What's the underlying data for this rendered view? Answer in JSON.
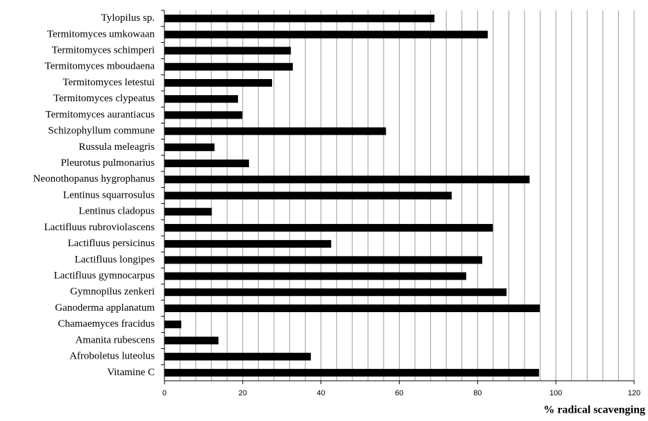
{
  "chart_data": {
    "type": "bar",
    "orientation": "horizontal",
    "x_label": "% radical scavenging",
    "categories": [
      "Tylopilus sp.",
      "Termitomyces umkowaan",
      "Termitomyces schimperi",
      "Termitomyces mboudaena",
      "Termitomyces letestui",
      "Termitomyces clypeatus",
      "Termitomyces aurantiacus",
      "Schizophyllum commune",
      "Russula meleagris",
      "Pleurotus pulmonarius",
      "Neonothopanus hygrophanus",
      "Lentinus squarrosulus",
      "Lentinus cladopus",
      "Lactifluus rubroviolascens",
      "Lactifluus persicinus",
      "Lactifluus longipes",
      "Lactifluus gymnocarpus",
      "Gymnopilus zenkeri",
      "Ganoderma applanatum",
      "Chamaemyces fracidus",
      "Amanita rubescens",
      "Afroboletus luteolus",
      "Vitamine C"
    ],
    "values": [
      69,
      82.6,
      32.3,
      32.8,
      27.5,
      18.8,
      19.9,
      56.6,
      12.8,
      21.6,
      93.3,
      73.4,
      12.1,
      83.9,
      42.6,
      81.2,
      77.1,
      87.4,
      95.9,
      4.3,
      13.8,
      37.4,
      95.7
    ],
    "color": "#000000",
    "xlim": [
      0,
      120
    ],
    "xticks": [
      0,
      20,
      40,
      60,
      80,
      100,
      120
    ],
    "xminor_ticks": [
      4,
      8,
      12,
      16,
      24,
      28,
      32,
      36,
      44,
      48,
      52,
      56,
      64,
      68,
      72,
      76,
      84,
      88,
      92,
      96,
      104,
      108,
      112,
      116
    ],
    "grid": true
  }
}
